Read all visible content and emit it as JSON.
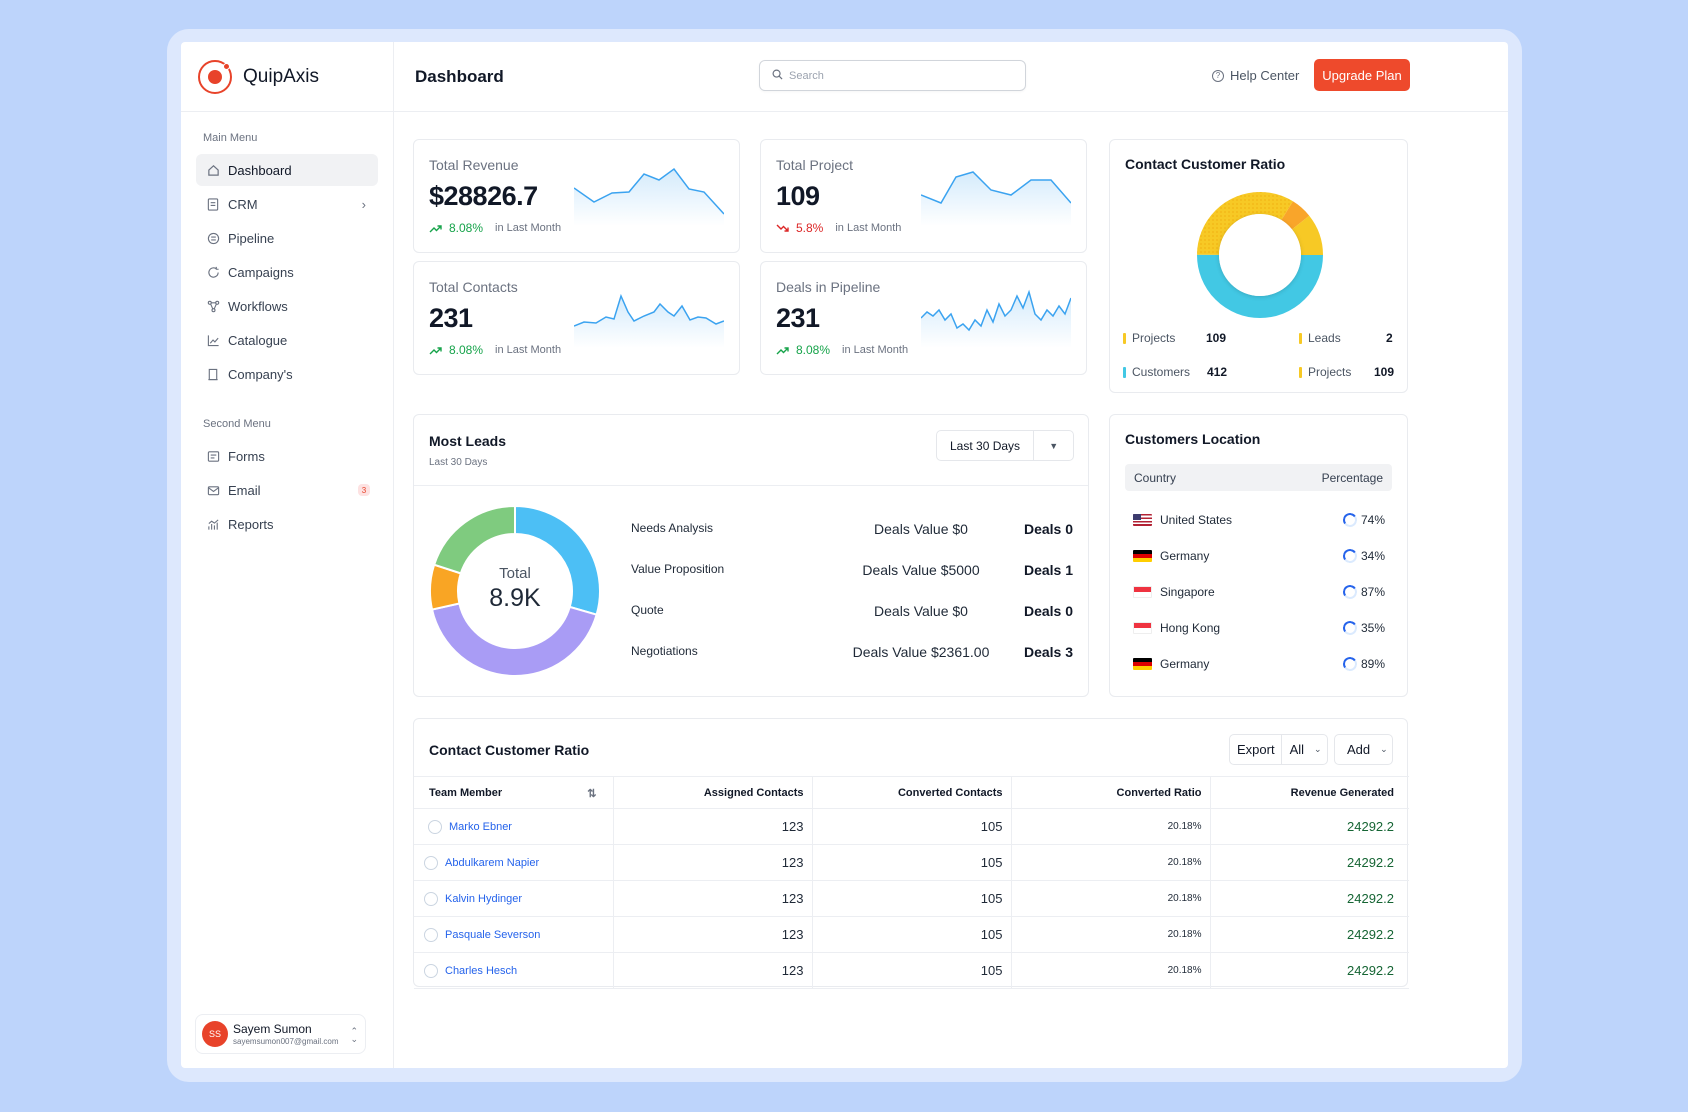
{
  "brand": {
    "name": "QuipAxis"
  },
  "sidebar": {
    "main_title": "Main Menu",
    "main_items": [
      {
        "label": "Dashboard",
        "icon": "home-icon"
      },
      {
        "label": "CRM",
        "icon": "crm-icon"
      },
      {
        "label": "Pipeline",
        "icon": "pipeline-icon"
      },
      {
        "label": "Campaigns",
        "icon": "campaigns-icon"
      },
      {
        "label": "Workflows",
        "icon": "workflows-icon"
      },
      {
        "label": "Catalogue",
        "icon": "catalogue-icon"
      },
      {
        "label": "Company's",
        "icon": "company-icon"
      }
    ],
    "second_title": "Second Menu",
    "second_items": [
      {
        "label": "Forms",
        "icon": "forms-icon"
      },
      {
        "label": "Email",
        "icon": "email-icon",
        "badge": "3"
      },
      {
        "label": "Reports",
        "icon": "reports-icon"
      }
    ],
    "user": {
      "initials": "SS",
      "name": "Sayem Sumon",
      "email": "sayemsumon007@gmail.com"
    }
  },
  "header": {
    "title": "Dashboard",
    "search_placeholder": "Search",
    "help": "Help Center",
    "upgrade": "Upgrade Plan"
  },
  "stats": [
    {
      "title": "Total Revenue",
      "value": "$28826.7",
      "change": "8.08%",
      "trend": "up",
      "since": "in Last Month"
    },
    {
      "title": "Total Project",
      "value": "109",
      "change": "5.8%",
      "trend": "down",
      "since": "in Last Month"
    },
    {
      "title": "Total Contacts",
      "value": "231",
      "change": "8.08%",
      "trend": "up",
      "since": "in Last Month"
    },
    {
      "title": "Deals in Pipeline",
      "value": "231",
      "change": "8.08%",
      "trend": "up",
      "since": "in Last Month"
    }
  ],
  "ratio_card": {
    "title": "Contact Customer Ratio",
    "legend": [
      {
        "label": "Projects",
        "value": "109",
        "color": "#f7c925"
      },
      {
        "label": "Leads",
        "value": "2",
        "color": "#f7c925"
      },
      {
        "label": "Customers",
        "value": "412",
        "color": "#42c8e4"
      },
      {
        "label": "Projects",
        "value": "109",
        "color": "#f7c925"
      }
    ]
  },
  "most_leads": {
    "title": "Most Leads",
    "subtitle": "Last 30 Days",
    "range": "Last 30 Days",
    "total_label": "Total",
    "total_value": "8.9K",
    "rows": [
      {
        "name": "Needs Analysis",
        "value": "Deals Value $0",
        "deals": "Deals 0"
      },
      {
        "name": "Value Proposition",
        "value": "Deals Value $5000",
        "deals": "Deals 1"
      },
      {
        "name": "Quote",
        "value": "Deals Value $0",
        "deals": "Deals 0"
      },
      {
        "name": "Negotiations",
        "value": "Deals Value $2361.00",
        "deals": "Deals 3"
      }
    ]
  },
  "location": {
    "title": "Customers Location",
    "col_country": "Country",
    "col_pct": "Percentage",
    "rows": [
      {
        "country": "United States",
        "pct": "74%",
        "flag": "us"
      },
      {
        "country": "Germany",
        "pct": "34%",
        "flag": "de"
      },
      {
        "country": "Singapore",
        "pct": "87%",
        "flag": "sg"
      },
      {
        "country": "Hong Kong",
        "pct": "35%",
        "flag": "hk"
      },
      {
        "country": "Germany",
        "pct": "89%",
        "flag": "de"
      }
    ]
  },
  "table": {
    "title": "Contact Customer Ratio",
    "export": "Export",
    "filter": "All",
    "add": "Add",
    "headers": [
      "Team Member",
      "Assigned Contacts",
      "Converted Contacts",
      "Converted Ratio",
      "Revenue Generated"
    ],
    "rows": [
      {
        "name": "Marko Ebner",
        "assigned": "123",
        "converted": "105",
        "ratio": "20.18%",
        "revenue": "24292.2"
      },
      {
        "name": "Abdulkarem Napier",
        "assigned": "123",
        "converted": "105",
        "ratio": "20.18%",
        "revenue": "24292.2"
      },
      {
        "name": "Kalvin Hydinger",
        "assigned": "123",
        "converted": "105",
        "ratio": "20.18%",
        "revenue": "24292.2"
      },
      {
        "name": "Pasquale Severson",
        "assigned": "123",
        "converted": "105",
        "ratio": "20.18%",
        "revenue": "24292.2"
      },
      {
        "name": "Charles Hesch",
        "assigned": "123",
        "converted": "105",
        "ratio": "20.18%",
        "revenue": "24292.2"
      }
    ]
  },
  "colors": {
    "accent": "#ee4a2c",
    "spark_line": "#3ba3f0",
    "positive": "#16a34a",
    "negative": "#dc2626",
    "lead_slices": [
      "#4cbff5",
      "#a99cf5",
      "#f9a524",
      "#7fcb7f"
    ]
  }
}
